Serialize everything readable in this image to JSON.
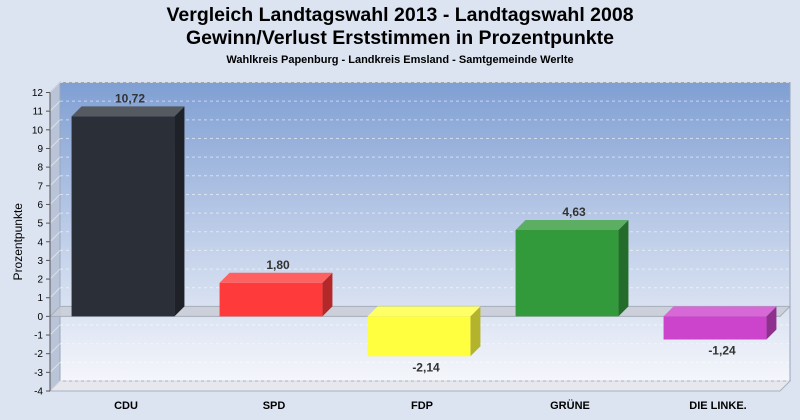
{
  "chart_data": {
    "type": "bar",
    "title_lines": [
      "Vergleich Landtagswahl 2013 - Landtagswahl 2008",
      "Gewinn/Verlust Erststimmen in Prozentpunkte"
    ],
    "subtitle": "Wahlkreis Papenburg - Landkreis Emsland - Samtgemeinde Werlte",
    "ylabel": "Prozentpunkte",
    "xlabel": "",
    "ylim": [
      -4,
      12
    ],
    "yticks": [
      12,
      11,
      10,
      9,
      8,
      7,
      6,
      5,
      4,
      3,
      2,
      1,
      0,
      -1,
      -2,
      -3,
      -4
    ],
    "grid": true,
    "legend": "none",
    "categories": [
      "CDU",
      "SPD",
      "FDP",
      "GRÜNE",
      "DIE LINKE."
    ],
    "values": [
      10.72,
      1.8,
      -2.14,
      4.63,
      -1.24
    ],
    "value_labels": [
      "10,72",
      "1,80",
      "-2,14",
      "4,63",
      "-1,24"
    ],
    "colors": [
      "#2b2f38",
      "#ff3a3a",
      "#ffff40",
      "#339a3c",
      "#cc44cc"
    ]
  }
}
